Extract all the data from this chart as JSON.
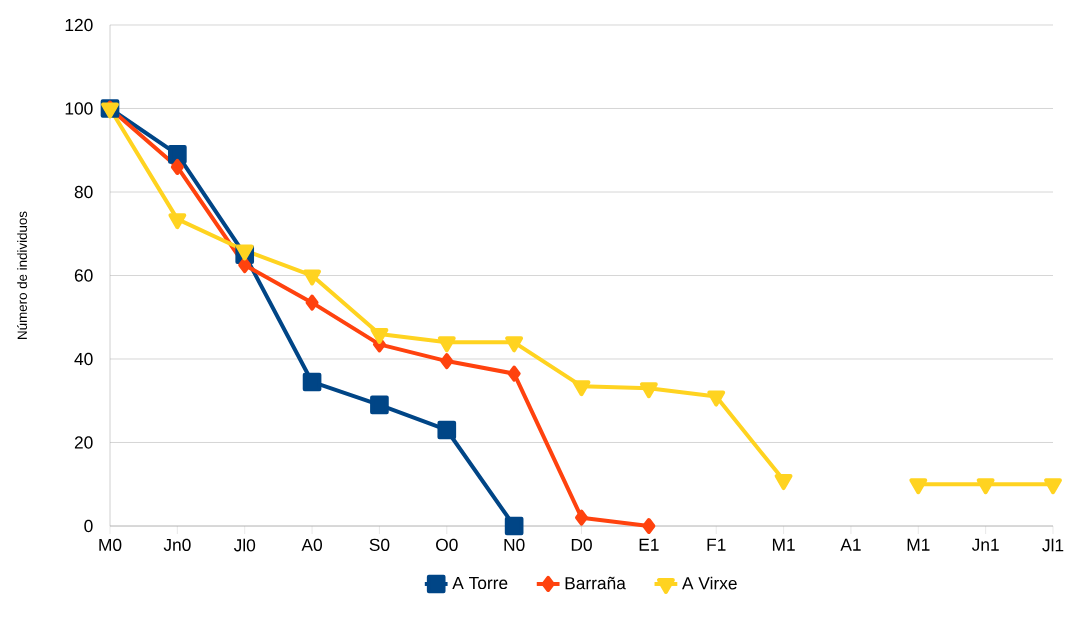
{
  "chart_data": {
    "type": "line",
    "ylabel": "Número de individuos",
    "categories": [
      "M0",
      "Jn0",
      "Jl0",
      "A0",
      "S0",
      "O0",
      "N0",
      "D0",
      "E1",
      "F1",
      "M1",
      "A1",
      "M1",
      "Jn1",
      "Jl1"
    ],
    "series": [
      {
        "name": "A Torre",
        "color": "#004586",
        "marker": "square",
        "values": [
          100,
          89,
          65,
          34.5,
          29,
          23,
          0,
          null,
          null,
          null,
          null,
          null,
          null,
          null,
          null
        ]
      },
      {
        "name": "Barraña",
        "color": "#ff420e",
        "marker": "diamond",
        "values": [
          100,
          86,
          62.5,
          53.5,
          43.5,
          39.5,
          36.5,
          2,
          0,
          null,
          null,
          null,
          null,
          null,
          null
        ]
      },
      {
        "name": "A Virxe",
        "color": "#ffd320",
        "marker": "triangle",
        "values": [
          100,
          73.5,
          66,
          60,
          46,
          44,
          44,
          33.5,
          33,
          31,
          11,
          null,
          10,
          10,
          10
        ]
      }
    ],
    "ylim": [
      0,
      120
    ],
    "yticks": [
      0,
      20,
      40,
      60,
      80,
      100,
      120
    ],
    "grid": "y",
    "legend": "bottom",
    "line_style": "solid"
  }
}
